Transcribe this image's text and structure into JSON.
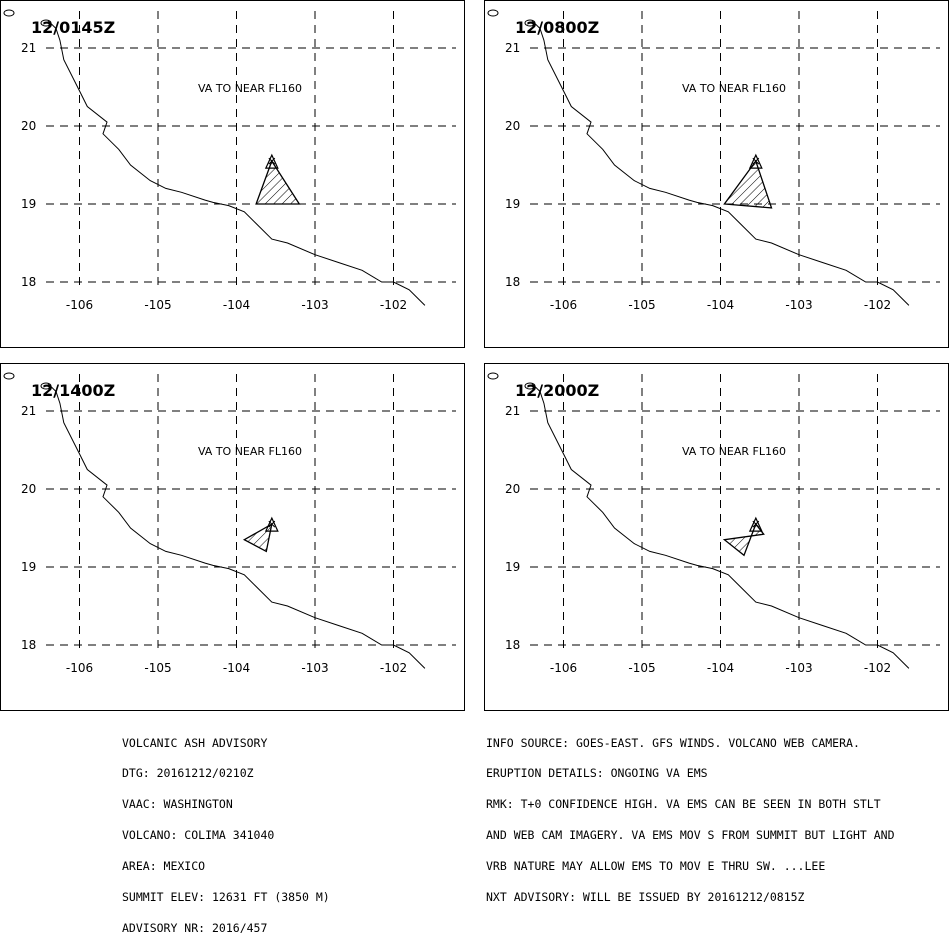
{
  "panels": [
    {
      "time": "12/0145Z",
      "va_label": "VA TO NEAR FL160",
      "polygon": [
        [
          -103.55,
          19.55
        ],
        [
          -103.2,
          19.0
        ],
        [
          -103.75,
          19.0
        ]
      ]
    },
    {
      "time": "12/0800Z",
      "va_label": "VA TO NEAR FL160",
      "polygon": [
        [
          -103.55,
          19.55
        ],
        [
          -103.35,
          18.95
        ],
        [
          -103.95,
          19.0
        ]
      ]
    },
    {
      "time": "12/1400Z",
      "va_label": "VA TO NEAR FL160",
      "polygon": [
        [
          -103.55,
          19.55
        ],
        [
          -103.62,
          19.2
        ],
        [
          -103.9,
          19.35
        ]
      ]
    },
    {
      "time": "12/2000Z",
      "va_label": "VA TO NEAR FL160",
      "polygon": [
        [
          -103.55,
          19.55
        ],
        [
          -103.7,
          19.15
        ],
        [
          -103.95,
          19.35
        ],
        [
          -103.45,
          19.42
        ]
      ]
    }
  ],
  "map": {
    "lon_ticks": [
      "-106",
      "-105",
      "-104",
      "-103",
      "-102"
    ],
    "lat_ticks": [
      "21",
      "20",
      "19",
      "18"
    ],
    "lon_values": [
      -106,
      -105,
      -104,
      -103,
      -102
    ],
    "lat_values": [
      21,
      20,
      19,
      18
    ],
    "volcano_symbol": "triangle-icon",
    "coastline": [
      [
        -106.4,
        21.35
      ],
      [
        -106.3,
        21.25
      ],
      [
        -106.25,
        21.1
      ],
      [
        -106.2,
        20.85
      ],
      [
        -106.0,
        20.45
      ],
      [
        -105.9,
        20.25
      ],
      [
        -105.65,
        20.05
      ],
      [
        -105.7,
        19.9
      ],
      [
        -105.5,
        19.7
      ],
      [
        -105.35,
        19.5
      ],
      [
        -105.1,
        19.3
      ],
      [
        -104.9,
        19.2
      ],
      [
        -104.7,
        19.15
      ],
      [
        -104.4,
        19.05
      ],
      [
        -104.3,
        19.02
      ],
      [
        -104.1,
        18.98
      ],
      [
        -103.9,
        18.9
      ],
      [
        -103.75,
        18.75
      ],
      [
        -103.55,
        18.55
      ],
      [
        -103.35,
        18.5
      ],
      [
        -103.0,
        18.35
      ],
      [
        -102.7,
        18.25
      ],
      [
        -102.4,
        18.15
      ],
      [
        -102.15,
        18.0
      ],
      [
        -102.0,
        18.0
      ],
      [
        -101.8,
        17.9
      ],
      [
        -101.6,
        17.7
      ]
    ]
  },
  "advisory_left": [
    "VOLCANIC ASH ADVISORY",
    "DTG: 20161212/0210Z",
    "VAAC: WASHINGTON",
    "VOLCANO: COLIMA 341040",
    "AREA: MEXICO",
    "SUMMIT ELEV: 12631 FT (3850 M)",
    "ADVISORY NR: 2016/457"
  ],
  "advisory_right": [
    "INFO SOURCE: GOES-EAST. GFS WINDS. VOLCANO WEB CAMERA.",
    "ERUPTION DETAILS: ONGOING VA EMS",
    "RMK: T+0 CONFIDENCE HIGH. VA EMS CAN BE SEEN IN BOTH STLT",
    "AND WEB CAM IMAGERY. VA EMS MOV S FROM SUMMIT BUT LIGHT AND",
    "VRB NATURE MAY ALLOW EMS TO MOV E THRU SW. ...LEE",
    "NXT ADVISORY: WILL BE ISSUED BY 20161212/0815Z"
  ]
}
